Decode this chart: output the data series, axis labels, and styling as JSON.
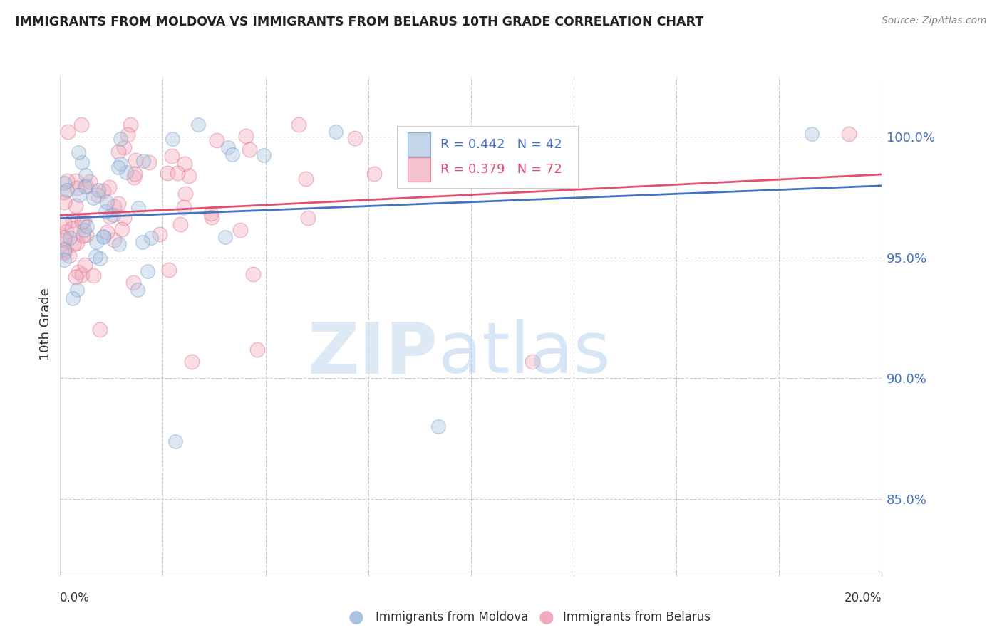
{
  "title": "IMMIGRANTS FROM MOLDOVA VS IMMIGRANTS FROM BELARUS 10TH GRADE CORRELATION CHART",
  "source": "Source: ZipAtlas.com",
  "ylabel": "10th Grade",
  "moldova_color": "#aac4e0",
  "moldova_edge": "#6699cc",
  "belarus_color": "#f0aabb",
  "belarus_edge": "#dd6688",
  "moldova_line_color": "#4472c4",
  "belarus_line_color": "#e05070",
  "moldova_R": 0.442,
  "moldova_N": 42,
  "belarus_R": 0.379,
  "belarus_N": 72,
  "moldova_label": "Immigrants from Moldova",
  "belarus_label": "Immigrants from Belarus",
  "x_lim": [
    0.0,
    0.2
  ],
  "y_lim": [
    0.82,
    1.025
  ],
  "y_ticks": [
    0.85,
    0.9,
    0.95,
    1.0
  ],
  "y_tick_labels": [
    "85.0%",
    "90.0%",
    "95.0%",
    "100.0%"
  ]
}
